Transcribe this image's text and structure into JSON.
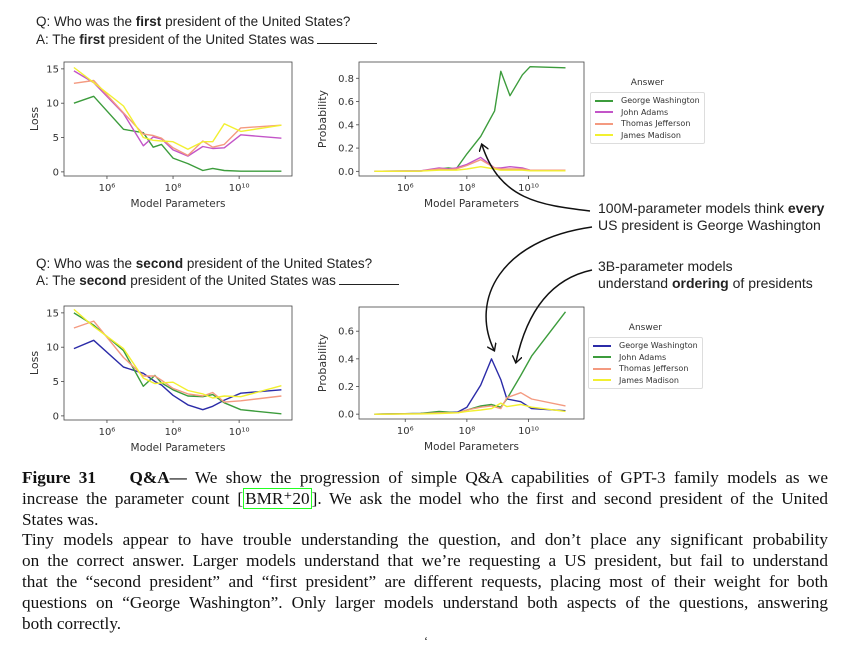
{
  "questions": [
    {
      "q_prefix": "Q: Who was the ",
      "q_bold": "first",
      "q_suffix": " president of the United States?",
      "a_prefix": "A: The ",
      "a_bold": "first",
      "a_suffix": " president of the United States was"
    },
    {
      "q_prefix": "Q: Who was the ",
      "q_bold": "second",
      "q_suffix": " president of the United States?",
      "a_prefix": "A: The ",
      "a_bold": "second",
      "a_suffix": " president of the United States was"
    }
  ],
  "annotations": [
    {
      "line1_prefix": "100M-parameter models think ",
      "line1_bold": "every",
      "line2": "US president is George Washington"
    },
    {
      "line1": "3B-parameter models",
      "line2_prefix": "understand ",
      "line2_bold": "ordering",
      "line2_suffix": " of presidents"
    }
  ],
  "legends": [
    {
      "title": "Answer",
      "items": [
        {
          "label": "George Washington",
          "color": "#3c9c3c"
        },
        {
          "label": "John Adams",
          "color": "#c355c8"
        },
        {
          "label": "Thomas Jefferson",
          "color": "#f49a80"
        },
        {
          "label": "James Madison",
          "color": "#f2f030"
        }
      ]
    },
    {
      "title": "Answer",
      "items": [
        {
          "label": "George Washington",
          "color": "#2b2ba8"
        },
        {
          "label": "John Adams",
          "color": "#3c9c3c"
        },
        {
          "label": "Thomas Jefferson",
          "color": "#f49a80"
        },
        {
          "label": "James Madison",
          "color": "#f2f030"
        }
      ]
    }
  ],
  "chart_data": [
    {
      "type": "line",
      "title": "",
      "xlabel": "Model Parameters",
      "ylabel": "Loss",
      "xscale": "log",
      "xlim_log10": [
        4.7,
        11.6
      ],
      "ylim": [
        -0.6,
        16
      ],
      "xticks_log10": [
        6,
        8,
        10
      ],
      "xtick_labels": [
        "10⁶",
        "10⁸",
        "10¹⁰"
      ],
      "yticks": [
        0,
        5,
        10,
        15
      ],
      "ytick_labels": [
        "0",
        "5",
        "10",
        "15"
      ],
      "x_log10": [
        5,
        5.6,
        6.5,
        7.1,
        7.4,
        7.65,
        8,
        8.45,
        8.9,
        9.2,
        9.55,
        10.05,
        11.28
      ],
      "series": [
        {
          "name": "George Washington",
          "color": "#3c9c3c",
          "values": [
            10,
            11,
            6.2,
            5.7,
            3.6,
            4.0,
            2.0,
            1.2,
            0.2,
            0.5,
            0.2,
            0.1,
            0.1
          ]
        },
        {
          "name": "John Adams",
          "color": "#c355c8",
          "values": [
            14.7,
            13,
            8.5,
            3.8,
            5.1,
            4.8,
            3.2,
            2.3,
            3.7,
            3.4,
            3.5,
            5.4,
            4.9
          ]
        },
        {
          "name": "Thomas Jefferson",
          "color": "#f49a80",
          "values": [
            12.9,
            13.3,
            8.6,
            5.5,
            5.3,
            4.9,
            3.5,
            2.4,
            4.5,
            3.6,
            4.0,
            6.4,
            6.8
          ]
        },
        {
          "name": "James Madison",
          "color": "#f2f030",
          "values": [
            15.2,
            13,
            9.6,
            5.0,
            4.6,
            4.5,
            4.4,
            3.3,
            4.4,
            4.4,
            7.0,
            5.9,
            6.8
          ]
        }
      ]
    },
    {
      "type": "line",
      "title": "",
      "xlabel": "Model Parameters",
      "ylabel": "Probability",
      "xscale": "log",
      "xlim_log10": [
        4.5,
        11.8
      ],
      "ylim": [
        -0.04,
        0.94
      ],
      "xticks_log10": [
        6,
        8,
        10
      ],
      "xtick_labels": [
        "10⁶",
        "10⁸",
        "10¹⁰"
      ],
      "yticks": [
        0,
        0.2,
        0.4,
        0.6,
        0.8
      ],
      "ytick_labels": [
        "0.0",
        "0.2",
        "0.4",
        "0.6",
        "0.8"
      ],
      "x_log10": [
        5,
        6.5,
        7.1,
        7.4,
        7.65,
        8,
        8.45,
        8.9,
        9.1,
        9.4,
        9.8,
        10.05,
        11.2
      ],
      "series": [
        {
          "name": "George Washington",
          "color": "#3c9c3c",
          "values": [
            0,
            0.003,
            0.02,
            0.03,
            0.02,
            0.15,
            0.3,
            0.52,
            0.86,
            0.65,
            0.83,
            0.9,
            0.89
          ]
        },
        {
          "name": "John Adams",
          "color": "#c355c8",
          "values": [
            0,
            0.005,
            0.03,
            0.02,
            0.03,
            0.06,
            0.12,
            0.03,
            0.03,
            0.04,
            0.03,
            0.01,
            0.01
          ]
        },
        {
          "name": "Thomas Jefferson",
          "color": "#f49a80",
          "values": [
            0,
            0.003,
            0.02,
            0.015,
            0.02,
            0.05,
            0.1,
            0.03,
            0.02,
            0.02,
            0.02,
            0.01,
            0.01
          ]
        },
        {
          "name": "James Madison",
          "color": "#f2f030",
          "values": [
            0,
            0.002,
            0.01,
            0.01,
            0.01,
            0.02,
            0.04,
            0.02,
            0.01,
            0.01,
            0.01,
            0.005,
            0.005
          ]
        }
      ]
    },
    {
      "type": "line",
      "title": "",
      "xlabel": "Model Parameters",
      "ylabel": "Loss",
      "xscale": "log",
      "xlim_log10": [
        4.7,
        11.6
      ],
      "ylim": [
        -0.6,
        16
      ],
      "xticks_log10": [
        6,
        8,
        10
      ],
      "xtick_labels": [
        "10⁶",
        "10⁸",
        "10¹⁰"
      ],
      "yticks": [
        0,
        5,
        10,
        15
      ],
      "ytick_labels": [
        "0",
        "5",
        "10",
        "15"
      ],
      "x_log10": [
        5,
        5.6,
        6.5,
        7.1,
        7.45,
        7.65,
        8,
        8.45,
        8.9,
        9.2,
        9.55,
        10.05,
        11.28
      ],
      "series": [
        {
          "name": "George Washington",
          "color": "#2b2ba8",
          "values": [
            9.8,
            11,
            7.1,
            6.2,
            5.0,
            4.5,
            3.0,
            1.6,
            0.9,
            1.4,
            2.3,
            3.3,
            3.8
          ]
        },
        {
          "name": "John Adams",
          "color": "#3c9c3c",
          "values": [
            15,
            13.2,
            9.5,
            4.3,
            5.9,
            4.8,
            3.8,
            2.9,
            2.8,
            3.1,
            1.9,
            0.9,
            0.3
          ]
        },
        {
          "name": "Thomas Jefferson",
          "color": "#f49a80",
          "values": [
            12.8,
            13.8,
            8.5,
            5.8,
            5.8,
            5.2,
            4.0,
            3.2,
            2.9,
            3.4,
            2.0,
            2.2,
            2.9
          ]
        },
        {
          "name": "James Madison",
          "color": "#f2f030",
          "values": [
            15.5,
            13,
            9.8,
            5.5,
            4.7,
            4.8,
            4.9,
            3.7,
            3.2,
            2.6,
            2.9,
            2.8,
            4.4
          ]
        }
      ]
    },
    {
      "type": "line",
      "title": "",
      "xlabel": "Model Parameters",
      "ylabel": "Probability",
      "xscale": "log",
      "xlim_log10": [
        4.5,
        11.8
      ],
      "ylim": [
        -0.035,
        0.775
      ],
      "xticks_log10": [
        6,
        8,
        10
      ],
      "xtick_labels": [
        "10⁶",
        "10⁸",
        "10¹⁰"
      ],
      "yticks": [
        0,
        0.2,
        0.4,
        0.6
      ],
      "ytick_labels": [
        "0.0",
        "0.2",
        "0.4",
        "0.6"
      ],
      "x_log10": [
        5,
        6.5,
        7.1,
        7.7,
        8,
        8.45,
        8.8,
        9.1,
        9.3,
        9.75,
        10.1,
        11.2
      ],
      "series": [
        {
          "name": "George Washington",
          "color": "#2b2ba8",
          "values": [
            0,
            0.005,
            0.01,
            0.015,
            0.05,
            0.21,
            0.4,
            0.25,
            0.11,
            0.09,
            0.04,
            0.025
          ]
        },
        {
          "name": "John Adams",
          "color": "#3c9c3c",
          "values": [
            0,
            0.005,
            0.02,
            0.01,
            0.03,
            0.06,
            0.07,
            0.05,
            0.11,
            0.28,
            0.42,
            0.74
          ]
        },
        {
          "name": "Thomas Jefferson",
          "color": "#f49a80",
          "values": [
            0,
            0.003,
            0.01,
            0.01,
            0.03,
            0.05,
            0.06,
            0.04,
            0.12,
            0.155,
            0.11,
            0.06
          ]
        },
        {
          "name": "James Madison",
          "color": "#f2f030",
          "values": [
            0,
            0.002,
            0.005,
            0.01,
            0.02,
            0.03,
            0.04,
            0.08,
            0.055,
            0.07,
            0.05,
            0.02
          ]
        }
      ]
    }
  ],
  "caption": {
    "figure_label": "Figure 31",
    "title": "Q&A—",
    "line1_rest": " We show the progression of simple Q&A capabilities of GPT-3 family models as we",
    "line2_prefix": "increase the parameter count [",
    "citation": "BMR⁺20",
    "line2_suffix": "]. We ask the model who the first and second president of the United",
    "line3": "States was.",
    "line4": "Tiny models appear to have trouble understanding the question, and don’t place any significant probability",
    "line5": "on the correct answer. Larger models understand that we’re requesting a US president, but fail to understand",
    "line6": "that the “second president” and “first president” are different requests, placing most of their weight for both",
    "line7": "questions on “George Washington”. Only larger models understand both aspects of the questions, answering",
    "line8": "both correctly."
  },
  "stray_mark": "‘"
}
